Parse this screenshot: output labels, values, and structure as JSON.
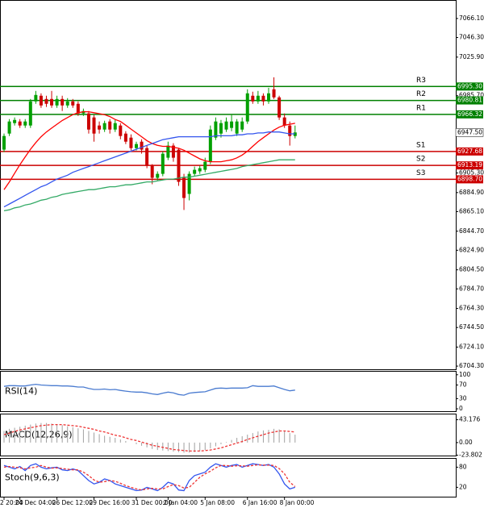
{
  "chart_data": [
    {
      "type": "candlestick",
      "categories": [
        "2 20:00",
        null,
        null,
        "24 Dec 04:00",
        null,
        null,
        null,
        null,
        null,
        null,
        "26 Dec 12:00",
        null,
        null,
        null,
        null,
        null,
        null,
        "29 Dec 16:00",
        null,
        null,
        null,
        null,
        null,
        null,
        null,
        "31 Dec 00:00",
        null,
        null,
        null,
        null,
        null,
        "2 Jan 04:00",
        null,
        null,
        null,
        null,
        null,
        null,
        "5 Jan 08:00",
        null,
        null,
        null,
        null,
        null,
        null,
        null,
        "6 Jan 16:00",
        null,
        null,
        null,
        null,
        null,
        null,
        "8 Jan 00:00",
        null,
        null
      ],
      "open": [
        6929.6,
        6946.3,
        6957.2,
        6958.9,
        6954.7,
        6954.7,
        6979.8,
        6985.7,
        6982.3,
        6982.3,
        6975.6,
        6982.3,
        6975.6,
        6979.8,
        6977.3,
        6967.3,
        6967.3,
        6963.1,
        6954.7,
        6950.5,
        6958.9,
        6950.5,
        6954.7,
        6946.3,
        6942.1,
        6931.2,
        6937.9,
        6931.2,
        6912.8,
        6900.3,
        6904.4,
        6921.2,
        6933.8,
        6929.6,
        6900.3,
        6883.5,
        6904.4,
        6907.0,
        6908.6,
        6917.0,
        6942.1,
        6946.3,
        6950.5,
        6952.2,
        6946.3,
        6950.5,
        6958.9,
        6985.7,
        6979.8,
        6985.7,
        6979.8,
        6992.4,
        6984.0,
        6963.1,
        6954.7,
        6943.8
      ],
      "high": [
        6946.3,
        6961.4,
        6963.1,
        6961.4,
        6961.4,
        6982.3,
        6990.7,
        6988.2,
        6985.7,
        6990.7,
        6985.7,
        6985.7,
        6983.2,
        6982.3,
        6979.8,
        6972.3,
        6969.8,
        6965.6,
        6958.9,
        6959.7,
        6961.4,
        6960.5,
        6957.2,
        6948.8,
        6945.5,
        6937.9,
        6940.4,
        6933.8,
        6914.5,
        6907.0,
        6927.9,
        6937.9,
        6936.3,
        6931.2,
        6904.4,
        6907.0,
        6912.0,
        6912.8,
        6921.2,
        6954.7,
        6963.1,
        6960.5,
        6963.1,
        6965.6,
        6961.4,
        6963.1,
        6992.4,
        6989.9,
        6990.7,
        6988.2,
        6994.0,
        7004.9,
        6985.7,
        6967.3,
        6958.9,
        6954.7
      ],
      "low": [
        6927.1,
        6943.8,
        6954.7,
        6952.2,
        6952.2,
        6952.2,
        6977.3,
        6973.1,
        6974.0,
        6973.1,
        6973.1,
        6969.8,
        6973.1,
        6973.1,
        6964.7,
        6964.7,
        6946.3,
        6937.9,
        6946.3,
        6948.0,
        6946.3,
        6948.0,
        6940.4,
        6935.4,
        6928.7,
        6928.7,
        6925.4,
        6910.3,
        6893.6,
        6897.7,
        6901.9,
        6918.7,
        6917.0,
        6891.9,
        6866.8,
        6876.8,
        6901.9,
        6904.4,
        6906.1,
        6914.5,
        6939.6,
        6942.1,
        6948.0,
        6948.8,
        6943.8,
        6948.0,
        6956.4,
        6977.3,
        6977.3,
        6975.6,
        6977.3,
        6982.3,
        6960.5,
        6952.2,
        6933.8,
        6941.3
      ],
      "close": [
        6943.8,
        6958.9,
        6960.5,
        6954.7,
        6958.9,
        6979.8,
        6986.5,
        6975.6,
        6977.3,
        6975.6,
        6982.3,
        6975.6,
        6979.8,
        6975.6,
        6967.3,
        6969.8,
        6950.5,
        6946.3,
        6950.5,
        6957.2,
        6950.5,
        6957.2,
        6943.8,
        6937.9,
        6931.2,
        6935.4,
        6929.6,
        6912.8,
        6900.3,
        6904.4,
        6925.4,
        6933.8,
        6921.2,
        6896.1,
        6879.3,
        6904.4,
        6908.6,
        6910.3,
        6917.0,
        6950.5,
        6958.9,
        6957.2,
        6958.9,
        6958.9,
        6958.9,
        6958.9,
        6988.2,
        6979.8,
        6985.7,
        6979.8,
        6988.2,
        6984.0,
        6963.1,
        6954.7,
        6943.8,
        6947.5
      ],
      "up_color": "#00a000",
      "down_color": "#cc0000",
      "series": [
        {
          "color": "#ff0000",
          "style": "solid",
          "values": [
            6888,
            6896,
            6905,
            6914,
            6922,
            6930,
            6937,
            6943,
            6948,
            6952,
            6956,
            6960,
            6963,
            6966,
            6968,
            6969,
            6969,
            6968,
            6967,
            6966,
            6964,
            6961,
            6959,
            6955,
            6951,
            6947,
            6943,
            6939,
            6936,
            6934,
            6933,
            6933,
            6932,
            6931,
            6929,
            6926,
            6923,
            6920,
            6918,
            6917,
            6917,
            6917,
            6918,
            6919,
            6921,
            6924,
            6928,
            6933,
            6938,
            6942,
            6946,
            6950,
            6953,
            6955,
            6956,
            6957
          ]
        },
        {
          "color": "#3355ee",
          "style": "solid",
          "values": [
            6870,
            6873,
            6876,
            6879,
            6882,
            6885,
            6888,
            6891,
            6893,
            6896,
            6899,
            6901,
            6903,
            6906,
            6908,
            6910,
            6912,
            6914,
            6916,
            6918,
            6920,
            6922,
            6924,
            6926,
            6928,
            6930,
            6932,
            6934,
            6936,
            6938,
            6940,
            6941,
            6942,
            6943,
            6943,
            6943,
            6943,
            6943,
            6943,
            6943,
            6944,
            6944,
            6944,
            6944,
            6945,
            6945,
            6946,
            6946,
            6947,
            6947,
            6948,
            6948,
            6948,
            6947,
            6946,
            6946
          ]
        },
        {
          "color": "#33aa66",
          "style": "solid",
          "values": [
            6866,
            6867,
            6869,
            6870,
            6872,
            6873,
            6875,
            6877,
            6878,
            6880,
            6881,
            6883,
            6884,
            6885,
            6886,
            6887,
            6888,
            6888,
            6889,
            6890,
            6891,
            6891,
            6892,
            6893,
            6893,
            6894,
            6895,
            6896,
            6896,
            6897,
            6898,
            6899,
            6899,
            6900,
            6901,
            6901,
            6902,
            6903,
            6904,
            6905,
            6906,
            6907,
            6908,
            6909,
            6910,
            6912,
            6913,
            6914,
            6915,
            6916,
            6917,
            6918,
            6919,
            6919,
            6919,
            6919
          ]
        }
      ],
      "levels": {
        "names": [
          "R3",
          "R2",
          "R1",
          "S1",
          "S2",
          "S3"
        ],
        "values": [
          6995.3,
          6980.81,
          6966.32,
          6927.68,
          6913.19,
          6898.7
        ],
        "value_labels": [
          "6995.30",
          "6980.81",
          "6966.32",
          "6927.68",
          "6913.19",
          "6898.70"
        ],
        "colors": [
          "#008000",
          "#008000",
          "#008000",
          "#cc0000",
          "#cc0000",
          "#cc0000"
        ]
      },
      "last": {
        "value": 6947.5,
        "label": "6947.50"
      },
      "ylim": [
        6701,
        7084.5
      ],
      "yticks": [
        {
          "value": 7066.1,
          "label": "7066.10"
        },
        {
          "value": 7046.3,
          "label": "7046.30"
        },
        {
          "value": 7025.9,
          "label": "7025.90"
        },
        {
          "value": 6985.7,
          "label": "6985.70"
        },
        {
          "value": 6905.3,
          "label": "6905.30"
        },
        {
          "value": 6884.9,
          "label": "6884.90"
        },
        {
          "value": 6865.1,
          "label": "6865.10"
        },
        {
          "value": 6844.7,
          "label": "6844.70"
        },
        {
          "value": 6824.9,
          "label": "6824.90"
        },
        {
          "value": 6804.5,
          "label": "6804.50"
        },
        {
          "value": 6784.7,
          "label": "6784.70"
        },
        {
          "value": 6764.3,
          "label": "6764.30"
        },
        {
          "value": 6744.5,
          "label": "6744.50"
        },
        {
          "value": 6724.1,
          "label": "6724.10"
        },
        {
          "value": 6704.3,
          "label": "6704.30"
        }
      ]
    },
    {
      "type": "line",
      "label": "RSI(14)",
      "series": [
        {
          "color": "#4a7bd0",
          "style": "solid",
          "values": [
            66,
            68,
            68,
            67,
            67,
            70,
            72,
            70,
            69,
            68,
            68,
            67,
            67,
            66,
            64,
            64,
            60,
            57,
            57,
            58,
            56,
            57,
            54,
            52,
            50,
            49,
            49,
            47,
            44,
            42,
            46,
            49,
            47,
            42,
            40,
            46,
            48,
            49,
            50,
            55,
            60,
            61,
            60,
            61,
            61,
            61,
            62,
            68,
            66,
            66,
            66,
            67,
            62,
            57,
            53,
            55
          ]
        }
      ],
      "ylim": [
        -7,
        109
      ],
      "yticks": [
        100,
        70,
        30,
        0
      ]
    },
    {
      "type": "bar",
      "label": "MACD(12,26,9)",
      "series": [
        {
          "color": "#a0a0a0",
          "style": "bar",
          "values": [
            22,
            26,
            28,
            30,
            32,
            34,
            36,
            37,
            37,
            36,
            35,
            33,
            31,
            29,
            27,
            25,
            22,
            19,
            16,
            13,
            11,
            9,
            6,
            3,
            0,
            -3,
            -6,
            -9,
            -12,
            -14,
            -15,
            -16,
            -17,
            -18,
            -19,
            -19,
            -18,
            -16,
            -14,
            -11,
            -7,
            -3,
            1,
            5,
            9,
            12,
            15,
            18,
            21,
            23,
            24,
            26,
            25,
            22,
            18,
            15
          ]
        },
        {
          "color": "#ee3333",
          "style": "dashed",
          "values": [
            15,
            18,
            21,
            24,
            26,
            28,
            30,
            32,
            33,
            34,
            34,
            34,
            33,
            32,
            31,
            29,
            27,
            25,
            22,
            20,
            17,
            14,
            12,
            9,
            6,
            4,
            1,
            -2,
            -5,
            -7,
            -9,
            -11,
            -13,
            -14,
            -15,
            -16,
            -16,
            -16,
            -15,
            -14,
            -12,
            -10,
            -7,
            -4,
            -1,
            2,
            6,
            9,
            12,
            15,
            18,
            20,
            22,
            22,
            21,
            20
          ]
        }
      ],
      "ylim": [
        -24.5,
        53.2
      ],
      "yticks": [
        43.176,
        {
          "value": 0,
          "label": "0.00"
        },
        -23.802
      ]
    },
    {
      "type": "line",
      "label": "Stoch(9,6,3)",
      "series": [
        {
          "color": "#3355ee",
          "style": "solid",
          "values": [
            85,
            80,
            75,
            82,
            70,
            85,
            90,
            80,
            75,
            78,
            80,
            72,
            70,
            75,
            70,
            55,
            40,
            30,
            35,
            45,
            40,
            30,
            25,
            20,
            15,
            10,
            12,
            20,
            15,
            10,
            20,
            35,
            30,
            12,
            10,
            40,
            55,
            60,
            65,
            80,
            90,
            85,
            80,
            85,
            88,
            80,
            85,
            90,
            88,
            85,
            88,
            80,
            60,
            30,
            15,
            20
          ]
        },
        {
          "color": "#ee3333",
          "style": "dashed",
          "values": [
            80,
            82,
            80,
            78,
            75,
            78,
            80,
            85,
            80,
            77,
            78,
            76,
            74,
            72,
            72,
            65,
            55,
            42,
            35,
            37,
            40,
            38,
            32,
            25,
            20,
            15,
            12,
            15,
            17,
            15,
            15,
            22,
            28,
            25,
            18,
            20,
            35,
            50,
            60,
            68,
            78,
            85,
            85,
            83,
            84,
            84,
            83,
            85,
            87,
            86,
            86,
            85,
            76,
            60,
            35,
            22
          ]
        }
      ],
      "ylim": [
        -8,
        105
      ],
      "yticks": [
        80,
        20
      ]
    }
  ]
}
